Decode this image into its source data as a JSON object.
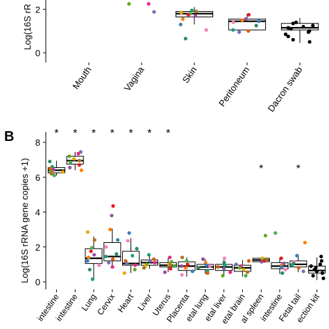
{
  "colors": {
    "axis": "#000000",
    "box": "#000000",
    "panel_b_black": "#000000",
    "point_palette": [
      "#2e8b57",
      "#1b9e77",
      "#d95f02",
      "#7570b3",
      "#e7298a",
      "#66a61e",
      "#e6ab02",
      "#a6761d",
      "#4daf4a",
      "#e41a1c",
      "#984ea3",
      "#ff7f00",
      "#377eb8",
      "#f781bf"
    ]
  },
  "chart_data": [
    {
      "panel": "A",
      "type": "box",
      "title": "",
      "panel_label": "",
      "ylabel": "Log(16S rR",
      "ylim": [
        0,
        2.3
      ],
      "yticks": [
        0,
        2
      ],
      "categories": [
        "Mouth",
        "Vagina",
        "Skin",
        "Peritoneum",
        "Dacron swab"
      ],
      "boxes": [
        {
          "category": "Mouth",
          "q1": null,
          "median": null,
          "q3": null,
          "whisker_low": null,
          "whisker_high": null,
          "points": []
        },
        {
          "category": "Vagina",
          "q1": null,
          "median": null,
          "q3": null,
          "whisker_low": null,
          "whisker_high": null,
          "points": [
            1.88,
            2.25,
            2.25
          ]
        },
        {
          "category": "Skin",
          "q1": 1.65,
          "median": 1.8,
          "q3": 1.9,
          "whisker_low": 1.3,
          "whisker_high": 2.1,
          "points": [
            1.85,
            1.9,
            1.8,
            1.75,
            1.7,
            1.55,
            1.3,
            1.05,
            0.65,
            1.95
          ]
        },
        {
          "category": "Peritoneum",
          "q1": 1.05,
          "median": 1.45,
          "q3": 1.55,
          "whisker_low": 1.05,
          "whisker_high": 1.8,
          "points": [
            1.75,
            1.55,
            1.5,
            1.45,
            1.4,
            1.25,
            1.05,
            1.0,
            0.95
          ]
        },
        {
          "category": "Dacron swab",
          "q1": 1.05,
          "median": 1.15,
          "q3": 1.35,
          "whisker_low": 0.45,
          "whisker_high": 1.6,
          "points": [
            1.4,
            1.35,
            1.25,
            1.2,
            1.15,
            1.1,
            1.0,
            0.95,
            0.85,
            0.75,
            0.6,
            0.5
          ]
        }
      ]
    },
    {
      "panel": "B",
      "type": "box",
      "title": "",
      "panel_label": "B",
      "ylabel": "Log(16S rRNA gene copies +1)",
      "ylim": [
        0,
        8.4
      ],
      "yticks": [
        0,
        2,
        4,
        6,
        8
      ],
      "significance_marker": "*",
      "categories": [
        "intestine",
        "intestine",
        "Lung",
        "Cervix",
        "Heart",
        "Liver",
        "Uterus",
        "Placenta",
        "etal lung",
        "etal liver",
        "etal brain",
        "al spleen",
        "intestine",
        "Fetal tail",
        "ection kit"
      ],
      "significant": [
        true,
        true,
        true,
        true,
        true,
        true,
        true,
        false,
        false,
        false,
        false,
        true,
        false,
        true,
        false
      ],
      "boxes": [
        {
          "q1": 6.25,
          "median": 6.4,
          "q3": 6.55,
          "whisker_low": 6.1,
          "whisker_high": 6.95,
          "points": [
            6.9,
            6.6,
            6.5,
            6.45,
            6.4,
            6.35,
            6.3,
            6.2,
            6.1
          ]
        },
        {
          "q1": 6.75,
          "median": 6.95,
          "q3": 7.2,
          "whisker_low": 6.4,
          "whisker_high": 7.45,
          "points": [
            7.45,
            7.35,
            7.2,
            7.05,
            6.95,
            6.85,
            6.7,
            6.55,
            6.4
          ]
        },
        {
          "q1": 1.05,
          "median": 1.35,
          "q3": 1.9,
          "whisker_low": 0.2,
          "whisker_high": 2.6,
          "points": [
            2.85,
            2.4,
            1.95,
            1.75,
            1.55,
            1.4,
            1.2,
            0.95,
            0.7,
            0.15
          ]
        },
        {
          "q1": 1.2,
          "median": 1.45,
          "q3": 2.25,
          "whisker_low": 0.8,
          "whisker_high": 3.05,
          "points": [
            4.35,
            3.8,
            3.0,
            2.4,
            2.0,
            1.6,
            1.45,
            1.3,
            1.1,
            0.85
          ]
        },
        {
          "q1": 0.95,
          "median": 1.05,
          "q3": 1.75,
          "whisker_low": 0.5,
          "whisker_high": 2.5,
          "points": [
            2.8,
            2.35,
            1.9,
            1.5,
            1.2,
            1.05,
            0.95,
            0.7,
            0.5
          ]
        },
        {
          "q1": 0.95,
          "median": 1.1,
          "q3": 1.25,
          "whisker_low": 0.75,
          "whisker_high": 1.6,
          "points": [
            1.55,
            1.3,
            1.2,
            1.1,
            1.0,
            0.9,
            0.8
          ]
        },
        {
          "q1": 0.85,
          "median": 0.95,
          "q3": 1.1,
          "whisker_low": 0.55,
          "whisker_high": 1.35,
          "points": [
            1.4,
            1.15,
            1.0,
            0.95,
            0.9,
            0.75,
            0.55
          ]
        },
        {
          "q1": 0.65,
          "median": 0.9,
          "q3": 1.15,
          "whisker_low": 0.3,
          "whisker_high": 1.4,
          "points": [
            1.4,
            1.2,
            1.0,
            0.9,
            0.8,
            0.6,
            0.4
          ]
        },
        {
          "q1": 0.7,
          "median": 0.85,
          "q3": 1.0,
          "whisker_low": 0.45,
          "whisker_high": 1.3,
          "points": [
            1.3,
            1.1,
            0.95,
            0.9,
            0.8,
            0.65,
            0.5
          ]
        },
        {
          "q1": 0.65,
          "median": 0.85,
          "q3": 1.0,
          "whisker_low": 0.3,
          "whisker_high": 1.4,
          "points": [
            1.35,
            1.1,
            0.95,
            0.85,
            0.75,
            0.55,
            0.35
          ]
        },
        {
          "q1": 0.6,
          "median": 0.8,
          "q3": 0.95,
          "whisker_low": 0.3,
          "whisker_high": 1.25,
          "points": [
            1.2,
            1.0,
            0.9,
            0.8,
            0.7,
            0.55,
            0.35
          ]
        },
        {
          "q1": 1.15,
          "median": 1.25,
          "q3": 1.35,
          "whisker_low": 1.1,
          "whisker_high": 1.4,
          "points": [
            2.65,
            1.35,
            1.3,
            1.25,
            1.2,
            1.15
          ]
        },
        {
          "q1": 0.75,
          "median": 0.9,
          "q3": 1.1,
          "whisker_low": 0.45,
          "whisker_high": 1.4,
          "points": [
            2.8,
            1.35,
            1.05,
            0.95,
            0.85,
            0.7,
            0.5
          ]
        },
        {
          "q1": 0.85,
          "median": 1.0,
          "q3": 1.2,
          "whisker_low": 0.55,
          "whisker_high": 1.55,
          "points": [
            2.25,
            1.5,
            1.15,
            1.05,
            0.95,
            0.8,
            0.6
          ]
        },
        {
          "q1": 0.5,
          "median": 0.65,
          "q3": 0.9,
          "whisker_low": 0.1,
          "whisker_high": 1.4,
          "points": [
            1.45,
            1.2,
            1.0,
            0.9,
            0.8,
            0.7,
            0.6,
            0.5,
            0.35,
            0.2
          ]
        }
      ]
    }
  ]
}
